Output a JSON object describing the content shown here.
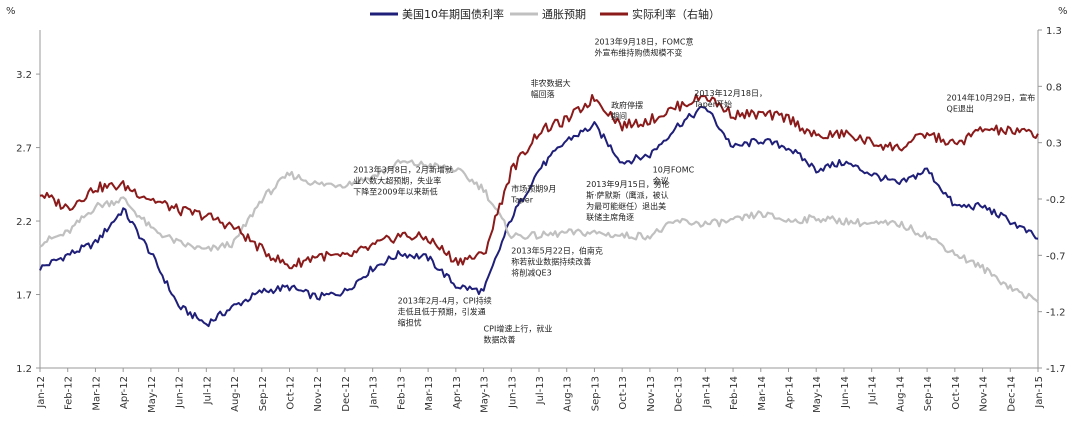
{
  "chart_data": {
    "type": "line",
    "units": {
      "left": "%",
      "right": "%"
    },
    "legend": {
      "position": "top",
      "entries": [
        {
          "name": "美国10年期国债利率",
          "color": "#1f1f7a"
        },
        {
          "name": "通胀预期",
          "color": "#c0c0c0"
        },
        {
          "name": "实际利率（右轴）",
          "color": "#8b1a1a"
        }
      ]
    },
    "y_left": {
      "ylim": [
        1.2,
        3.5
      ],
      "ticks": [
        "1.2",
        "1.7",
        "2.2",
        "2.7",
        "3.2"
      ],
      "tick_values": [
        1.2,
        1.7,
        2.2,
        2.7,
        3.2
      ]
    },
    "y_right": {
      "ylim": [
        -1.7,
        1.3
      ],
      "ticks": [
        "-1.7",
        "-1.2",
        "-0.7",
        "-0.2",
        "0.3",
        "0.8",
        "1.3"
      ],
      "tick_values": [
        -1.7,
        -1.2,
        -0.7,
        -0.2,
        0.3,
        0.8,
        1.3
      ]
    },
    "x_ticks": [
      "Jan-12",
      "Feb-12",
      "Mar-12",
      "Apr-12",
      "May-12",
      "Jun-12",
      "Jul-12",
      "Aug-12",
      "Sep-12",
      "Oct-12",
      "Nov-12",
      "Dec-12",
      "Jan-13",
      "Feb-13",
      "Mar-13",
      "Apr-13",
      "May-13",
      "Jun-13",
      "Jul-13",
      "Aug-13",
      "Sep-13",
      "Oct-13",
      "Nov-13",
      "Dec-13",
      "Jan-14",
      "Feb-14",
      "Mar-14",
      "Apr-14",
      "May-14",
      "Jun-14",
      "Jul-14",
      "Aug-14",
      "Sep-14",
      "Oct-14",
      "Nov-14",
      "Dec-14",
      "Jan-15"
    ],
    "x": [
      0,
      1,
      2,
      3,
      4,
      5,
      6,
      7,
      8,
      9,
      10,
      11,
      12,
      13,
      14,
      15,
      16,
      17,
      18,
      19,
      20,
      21,
      22,
      23,
      24,
      25,
      26,
      27,
      28,
      29,
      30,
      31,
      32,
      33,
      34,
      35,
      36
    ],
    "series": [
      {
        "name": "美国10年期国债利率",
        "axis": "left",
        "color": "#1f1f7a",
        "values": [
          1.88,
          1.97,
          2.05,
          2.28,
          1.98,
          1.62,
          1.5,
          1.62,
          1.72,
          1.75,
          1.68,
          1.72,
          1.88,
          1.98,
          1.95,
          1.76,
          1.72,
          2.22,
          2.55,
          2.75,
          2.85,
          2.6,
          2.65,
          2.85,
          2.98,
          2.7,
          2.75,
          2.7,
          2.55,
          2.6,
          2.52,
          2.45,
          2.55,
          2.3,
          2.3,
          2.2,
          2.08
        ]
      },
      {
        "name": "通胀预期",
        "axis": "left",
        "color": "#c0c0c0",
        "values": [
          2.05,
          2.12,
          2.3,
          2.35,
          2.15,
          2.05,
          2.0,
          2.05,
          2.35,
          2.52,
          2.45,
          2.45,
          2.5,
          2.6,
          2.58,
          2.55,
          2.42,
          2.1,
          2.1,
          2.12,
          2.12,
          2.1,
          2.1,
          2.2,
          2.18,
          2.2,
          2.25,
          2.2,
          2.22,
          2.2,
          2.18,
          2.18,
          2.1,
          1.98,
          1.88,
          1.75,
          1.65
        ]
      },
      {
        "name": "实际利率（右轴）",
        "axis": "right",
        "color": "#8b1a1a",
        "values": [
          -0.15,
          -0.28,
          -0.1,
          -0.08,
          -0.2,
          -0.3,
          -0.35,
          -0.45,
          -0.65,
          -0.8,
          -0.7,
          -0.72,
          -0.62,
          -0.52,
          -0.55,
          -0.75,
          -0.7,
          0.05,
          0.4,
          0.5,
          0.7,
          0.45,
          0.5,
          0.62,
          0.72,
          0.55,
          0.55,
          0.52,
          0.35,
          0.38,
          0.3,
          0.25,
          0.38,
          0.28,
          0.42,
          0.4,
          0.38
        ]
      }
    ],
    "annotations": [
      {
        "lines": [
          "2013年9月18日，FOMC意",
          "外宣布维持购债规模不变"
        ],
        "x": 20,
        "y": 3.4
      },
      {
        "lines": [
          "2013年12月18日，",
          "Taper开始"
        ],
        "x": 23.6,
        "y": 3.05
      },
      {
        "lines": [
          "非农数据大",
          "幅回落"
        ],
        "x": 17.7,
        "y": 3.12
      },
      {
        "lines": [
          "政府停摆",
          "期间"
        ],
        "x": 20.6,
        "y": 2.97
      },
      {
        "lines": [
          "2014年10月29日，宣布",
          "QE退出"
        ],
        "x": 32.7,
        "y": 3.02
      },
      {
        "lines": [
          "2013年3月8日，2月新增就",
          "业人数大超预期，失业率",
          "下降至2009年以来新低"
        ],
        "x": 11.3,
        "y": 2.53
      },
      {
        "lines": [
          "市场预期9月",
          "Taper"
        ],
        "x": 17.0,
        "y": 2.4
      },
      {
        "lines": [
          "2013年9月15日，劳伦",
          "斯·萨默斯（鹰派，被认",
          "为最可能继任）退出美",
          "联储主席角逐"
        ],
        "x": 19.7,
        "y": 2.43
      },
      {
        "lines": [
          "10月FOMC",
          "会议"
        ],
        "x": 22.1,
        "y": 2.53
      },
      {
        "lines": [
          "2013年5月22日，伯南克",
          "称若就业数据持续改善",
          "将削减QE3"
        ],
        "x": 17.0,
        "y": 1.98
      },
      {
        "lines": [
          "2013年2月-4月，CPI持续",
          "走低且低于预期，引发通",
          "缩担忧"
        ],
        "x": 12.9,
        "y": 1.64
      },
      {
        "lines": [
          "CPI增速上行，就业",
          "数据改善"
        ],
        "x": 16.0,
        "y": 1.45
      }
    ]
  }
}
